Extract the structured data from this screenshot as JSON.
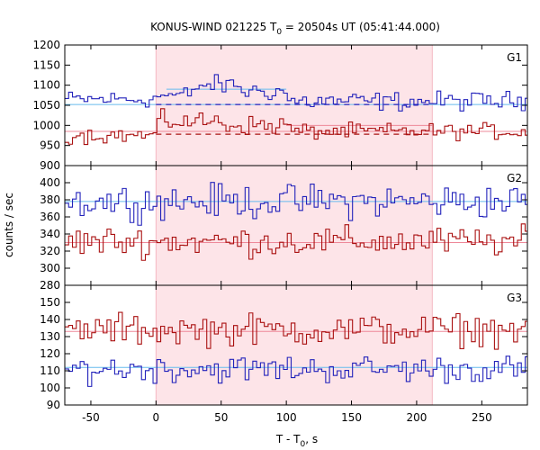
{
  "title": {
    "prefix": "KONUS-WIND 021225 T",
    "sub": "0",
    "suffix": " = 20504s UT (05:41:44.000)"
  },
  "ylabel": "counts / sec",
  "xlabel": {
    "prefix": "T - T",
    "sub": "0",
    "suffix": ", s"
  },
  "colors": {
    "blue_series": "#2222bb",
    "red_series": "#aa1111",
    "blue_background": "#66bbee",
    "red_background": "#ee8899",
    "highlight": "#fde4e8"
  },
  "chart_data": {
    "type": "line",
    "style": "step",
    "x_range": [
      -70,
      285
    ],
    "x_ticks": [
      -50,
      0,
      50,
      100,
      150,
      200,
      250
    ],
    "highlight_interval": [
      0,
      212
    ],
    "bin_width": 2.944,
    "panels": [
      {
        "name": "G1",
        "ylim": [
          900,
          1200
        ],
        "y_ticks": [
          900,
          950,
          1000,
          1050,
          1100,
          1150,
          1200
        ],
        "series": [
          {
            "color": "blue",
            "segments": [
              {
                "x_start": -70,
                "x_end": 0,
                "base": 1065,
                "amp": 16
              },
              {
                "x_start": 0,
                "x_end": 30,
                "base": 1075,
                "amp": 18
              },
              {
                "x_start": 30,
                "x_end": 65,
                "base": 1100,
                "amp": 18
              },
              {
                "x_start": 65,
                "x_end": 100,
                "base": 1085,
                "amp": 18
              },
              {
                "x_start": 100,
                "x_end": 285,
                "base": 1060,
                "amp": 18
              }
            ]
          },
          {
            "color": "red",
            "segments": [
              {
                "x_start": -70,
                "x_end": 0,
                "base": 975,
                "amp": 15
              },
              {
                "x_start": 0,
                "x_end": 55,
                "base": 1010,
                "amp": 18
              },
              {
                "x_start": 55,
                "x_end": 105,
                "base": 1000,
                "amp": 18
              },
              {
                "x_start": 105,
                "x_end": 285,
                "base": 985,
                "amp": 15
              }
            ]
          }
        ],
        "background_levels": [
          {
            "color": "blue",
            "y": 1052,
            "x_from": -70,
            "x_to": 285,
            "style": "solid"
          },
          {
            "color": "red",
            "y": 985,
            "x_from": -70,
            "x_to": 285,
            "style": "solid"
          },
          {
            "color": "blue",
            "y": 1090,
            "x_from": 8,
            "x_to": 100,
            "style": "solid"
          },
          {
            "color": "red",
            "y": 1000,
            "x_from": 100,
            "x_to": 212,
            "style": "solid"
          },
          {
            "color": "blue",
            "y": 1052,
            "x_from": 0,
            "x_to": 212,
            "style": "dashed"
          },
          {
            "color": "red",
            "y": 978,
            "x_from": 0,
            "x_to": 212,
            "style": "dashed"
          }
        ]
      },
      {
        "name": "G2",
        "ylim": [
          280,
          420
        ],
        "y_ticks": [
          280,
          300,
          320,
          340,
          360,
          380,
          400
        ],
        "series": [
          {
            "color": "blue",
            "segments": [
              {
                "x_start": -70,
                "x_end": 285,
                "base": 378,
                "amp": 15
              }
            ]
          },
          {
            "color": "red",
            "segments": [
              {
                "x_start": -70,
                "x_end": 285,
                "base": 331,
                "amp": 13
              }
            ]
          }
        ],
        "background_levels": [
          {
            "color": "blue",
            "y": 378,
            "x_from": -70,
            "x_to": 285,
            "style": "solid"
          },
          {
            "color": "red",
            "y": 330,
            "x_from": -70,
            "x_to": 285,
            "style": "solid"
          }
        ]
      },
      {
        "name": "G3",
        "ylim": [
          90,
          160
        ],
        "y_ticks": [
          90,
          100,
          110,
          120,
          130,
          140,
          150
        ],
        "series": [
          {
            "color": "blue",
            "segments": [
              {
                "x_start": -70,
                "x_end": 285,
                "base": 111,
                "amp": 6
              }
            ]
          },
          {
            "color": "red",
            "segments": [
              {
                "x_start": -70,
                "x_end": 285,
                "base": 134,
                "amp": 7
              }
            ]
          }
        ],
        "background_levels": [
          {
            "color": "blue",
            "y": 112,
            "x_from": -70,
            "x_to": 285,
            "style": "solid"
          },
          {
            "color": "red",
            "y": 133,
            "x_from": -70,
            "x_to": 285,
            "style": "solid"
          }
        ]
      }
    ]
  }
}
